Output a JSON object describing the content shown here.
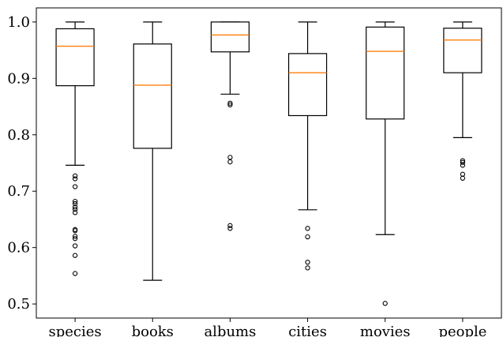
{
  "chart_data": {
    "type": "boxplot",
    "title": "",
    "xlabel": "",
    "ylabel": "",
    "ylim": [
      0.475,
      1.025
    ],
    "yticks": [
      0.5,
      0.6,
      0.7,
      0.8,
      0.9,
      1.0
    ],
    "ytick_labels": [
      "0.5",
      "0.6",
      "0.7",
      "0.8",
      "0.9",
      "1.0"
    ],
    "grid": false,
    "colors": {
      "box": "#000000",
      "median": "#ff7f0e",
      "flier": "#000000"
    },
    "categories": [
      "species",
      "books",
      "albums",
      "cities",
      "movies",
      "people"
    ],
    "boxes": [
      {
        "name": "species",
        "whislo": 0.746,
        "q1": 0.887,
        "med": 0.957,
        "q3": 0.988,
        "whishi": 1.0,
        "fliers": [
          0.727,
          0.722,
          0.708,
          0.682,
          0.678,
          0.672,
          0.668,
          0.662,
          0.632,
          0.63,
          0.62,
          0.616,
          0.603,
          0.586,
          0.554
        ]
      },
      {
        "name": "books",
        "whislo": 0.542,
        "q1": 0.776,
        "med": 0.888,
        "q3": 0.961,
        "whishi": 1.0,
        "fliers": []
      },
      {
        "name": "albums",
        "whislo": 0.872,
        "q1": 0.947,
        "med": 0.977,
        "q3": 1.0,
        "whishi": 1.0,
        "fliers": [
          0.856,
          0.853,
          0.76,
          0.752,
          0.639,
          0.634
        ]
      },
      {
        "name": "cities",
        "whislo": 0.667,
        "q1": 0.834,
        "med": 0.91,
        "q3": 0.944,
        "whishi": 1.0,
        "fliers": [
          0.634,
          0.619,
          0.574,
          0.564
        ]
      },
      {
        "name": "movies",
        "whislo": 0.623,
        "q1": 0.828,
        "med": 0.948,
        "q3": 0.991,
        "whishi": 1.0,
        "fliers": [
          0.501
        ]
      },
      {
        "name": "people",
        "whislo": 0.795,
        "q1": 0.91,
        "med": 0.968,
        "q3": 0.989,
        "whishi": 1.0,
        "fliers": [
          0.754,
          0.751,
          0.746,
          0.73,
          0.723
        ]
      }
    ]
  }
}
